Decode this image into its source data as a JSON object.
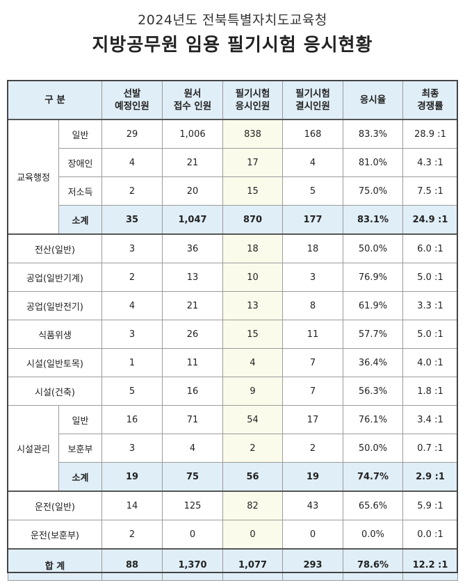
{
  "header": {
    "subtitle": "2024년도 전북특별자치도교육청",
    "title": "지방공무원 임용 필기시험 응시현황"
  },
  "columns": {
    "category": "구  분",
    "planned": [
      "선발",
      "예정인원"
    ],
    "applied": [
      "원서",
      "접수 인원"
    ],
    "took": [
      "필기시험",
      "응시인원"
    ],
    "absent": [
      "필기시험",
      "결시인원"
    ],
    "rate": "응시율",
    "final": [
      "최종",
      "경쟁률"
    ]
  },
  "groups": {
    "admin": "교육행정",
    "facility_mgmt": "시설관리"
  },
  "rows": {
    "admin_general": {
      "label": "일반",
      "planned": "29",
      "applied": "1,006",
      "took": "838",
      "absent": "168",
      "rate": "83.3%",
      "final": "28.9 :1"
    },
    "admin_disabled": {
      "label": "장애인",
      "planned": "4",
      "applied": "21",
      "took": "17",
      "absent": "4",
      "rate": "81.0%",
      "final": "4.3 :1"
    },
    "admin_lowincome": {
      "label": "저소득",
      "planned": "2",
      "applied": "20",
      "took": "15",
      "absent": "5",
      "rate": "75.0%",
      "final": "7.5 :1"
    },
    "admin_subtotal": {
      "label": "소계",
      "planned": "35",
      "applied": "1,047",
      "took": "870",
      "absent": "177",
      "rate": "83.1%",
      "final": "24.9 :1"
    },
    "computing": {
      "label": "전산(일반)",
      "planned": "3",
      "applied": "36",
      "took": "18",
      "absent": "18",
      "rate": "50.0%",
      "final": "6.0 :1"
    },
    "ind_mech": {
      "label": "공업(일반기계)",
      "planned": "2",
      "applied": "13",
      "took": "10",
      "absent": "3",
      "rate": "76.9%",
      "final": "5.0 :1"
    },
    "ind_elec": {
      "label": "공업(일반전기)",
      "planned": "4",
      "applied": "21",
      "took": "13",
      "absent": "8",
      "rate": "61.9%",
      "final": "3.3 :1"
    },
    "food": {
      "label": "식품위생",
      "planned": "3",
      "applied": "26",
      "took": "15",
      "absent": "11",
      "rate": "57.7%",
      "final": "5.0 :1"
    },
    "civil": {
      "label": "시설(일반토목)",
      "planned": "1",
      "applied": "11",
      "took": "4",
      "absent": "7",
      "rate": "36.4%",
      "final": "4.0 :1"
    },
    "architecture": {
      "label": "시설(건축)",
      "planned": "5",
      "applied": "16",
      "took": "9",
      "absent": "7",
      "rate": "56.3%",
      "final": "1.8 :1"
    },
    "fm_general": {
      "label": "일반",
      "planned": "16",
      "applied": "71",
      "took": "54",
      "absent": "17",
      "rate": "76.1%",
      "final": "3.4 :1"
    },
    "fm_veteran": {
      "label": "보훈부",
      "planned": "3",
      "applied": "4",
      "took": "2",
      "absent": "2",
      "rate": "50.0%",
      "final": "0.7 :1"
    },
    "fm_subtotal": {
      "label": "소계",
      "planned": "19",
      "applied": "75",
      "took": "56",
      "absent": "19",
      "rate": "74.7%",
      "final": "2.9 :1"
    },
    "driver_general": {
      "label": "운전(일반)",
      "planned": "14",
      "applied": "125",
      "took": "82",
      "absent": "43",
      "rate": "65.6%",
      "final": "5.9 :1"
    },
    "driver_veteran": {
      "label": "운전(보훈부)",
      "planned": "2",
      "applied": "0",
      "took": "0",
      "absent": "0",
      "rate": "0.0%",
      "final": "0.0 :1"
    },
    "total": {
      "label": "합  계",
      "planned": "88",
      "applied": "1,370",
      "took": "1,077",
      "absent": "293",
      "rate": "78.6%",
      "final": "12.2 :1"
    }
  },
  "colors": {
    "header_bg": "#e0eef7",
    "highlight_col": "#fbfbeb",
    "border": "#9a9a9a"
  }
}
